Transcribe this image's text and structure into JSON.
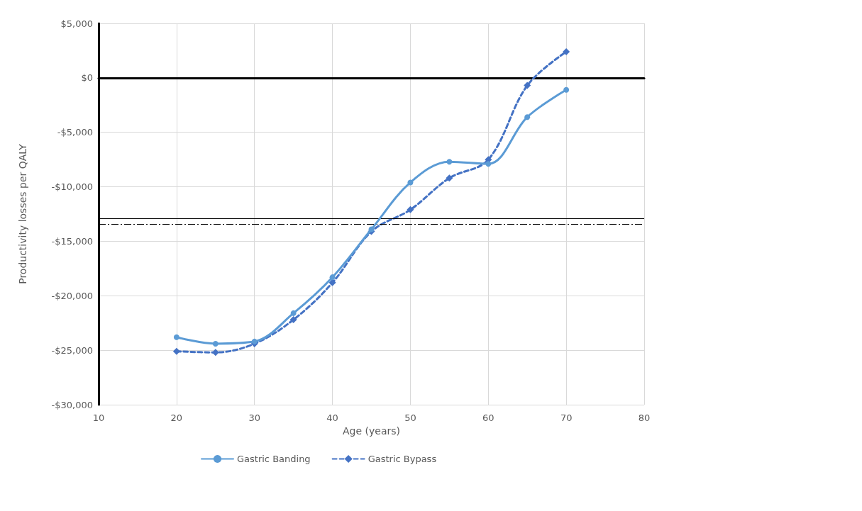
{
  "chart_data": {
    "type": "line",
    "xlabel": "Age (years)",
    "ylabel": "Productivity losses per QALY",
    "x": [
      20,
      25,
      30,
      35,
      40,
      45,
      50,
      55,
      60,
      65,
      70
    ],
    "series": [
      {
        "name": "Gastric Banding",
        "color": "#5b9bd5",
        "marker": "circle",
        "line_style": "solid",
        "values": [
          -23800,
          -24400,
          -24200,
          -21600,
          -18300,
          -13900,
          -9600,
          -7700,
          -7900,
          -3600,
          -1100
        ]
      },
      {
        "name": "Gastric Bypass",
        "color": "#4472c4",
        "marker": "diamond",
        "line_style": "dashed",
        "values": [
          -25100,
          -25200,
          -24400,
          -22200,
          -18800,
          -14100,
          -12100,
          -9200,
          -7500,
          -700,
          2400
        ]
      }
    ],
    "xlim": [
      10,
      80
    ],
    "xticks": [
      10,
      20,
      30,
      40,
      50,
      60,
      70,
      80
    ],
    "ylim": [
      -30000,
      5000
    ],
    "yticks": [
      {
        "value": -30000,
        "label": "-$30,000"
      },
      {
        "value": -25000,
        "label": "-$25,000"
      },
      {
        "value": -20000,
        "label": "-$20,000"
      },
      {
        "value": -15000,
        "label": "-$15,000"
      },
      {
        "value": -10000,
        "label": "-$10,000"
      },
      {
        "value": -5000,
        "label": "-$5,000"
      },
      {
        "value": 0,
        "label": "$0"
      },
      {
        "value": 5000,
        "label": "$5,000"
      }
    ],
    "ref_lines": [
      {
        "axis": "y",
        "value": -12900,
        "color": "#000000",
        "line_style": "solid"
      },
      {
        "axis": "y",
        "value": -13400,
        "color": "#000000",
        "line_style": "dashed"
      }
    ],
    "grid": true,
    "legend": "bottom"
  }
}
